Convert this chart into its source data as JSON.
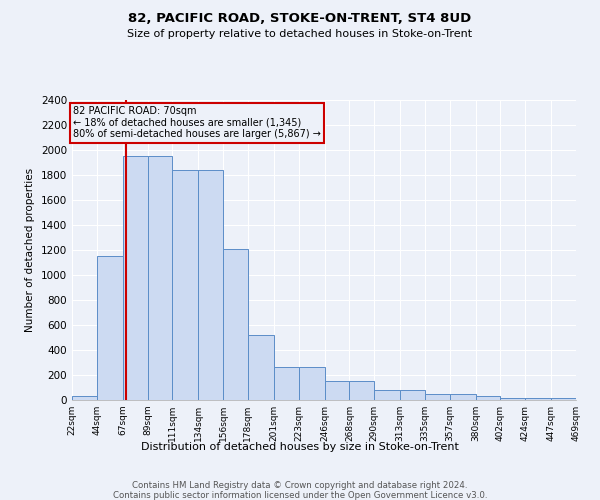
{
  "title1": "82, PACIFIC ROAD, STOKE-ON-TRENT, ST4 8UD",
  "title2": "Size of property relative to detached houses in Stoke-on-Trent",
  "xlabel": "Distribution of detached houses by size in Stoke-on-Trent",
  "ylabel": "Number of detached properties",
  "footer1": "Contains HM Land Registry data © Crown copyright and database right 2024.",
  "footer2": "Contains public sector information licensed under the Open Government Licence v3.0.",
  "annotation_title": "82 PACIFIC ROAD: 70sqm",
  "annotation_line1": "← 18% of detached houses are smaller (1,345)",
  "annotation_line2": "80% of semi-detached houses are larger (5,867) →",
  "property_size": 70,
  "bin_edges": [
    22,
    44,
    67,
    89,
    111,
    134,
    156,
    178,
    201,
    223,
    246,
    268,
    290,
    313,
    335,
    357,
    380,
    402,
    424,
    447,
    469
  ],
  "bar_heights": [
    30,
    1150,
    1950,
    1950,
    1840,
    1840,
    1210,
    520,
    265,
    265,
    155,
    155,
    80,
    80,
    45,
    45,
    35,
    20,
    20,
    20
  ],
  "bar_color": "#ccdaf2",
  "bar_edge_color": "#5b8dc8",
  "vline_color": "#cc0000",
  "annotation_box_color": "#cc0000",
  "bg_color": "#edf1f9",
  "grid_color": "#ffffff",
  "ylim": [
    0,
    2400
  ],
  "yticks": [
    0,
    200,
    400,
    600,
    800,
    1000,
    1200,
    1400,
    1600,
    1800,
    2000,
    2200,
    2400
  ]
}
